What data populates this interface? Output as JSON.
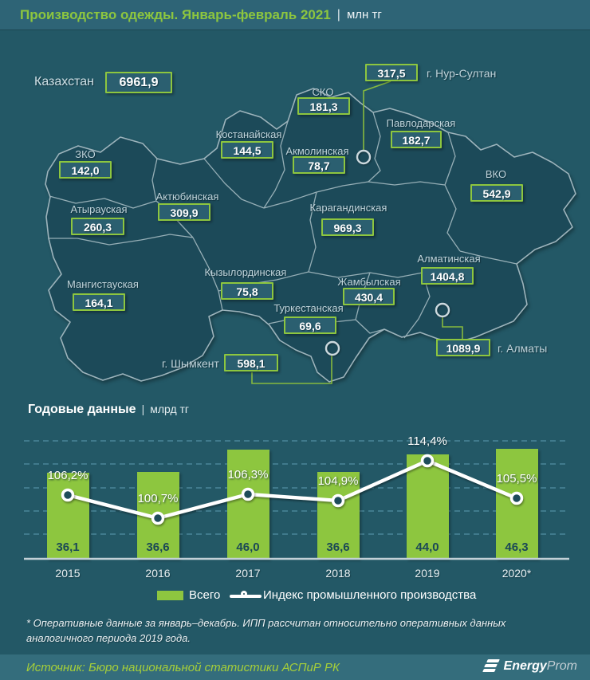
{
  "colors": {
    "accent_green": "#8dc63f",
    "background_teal": "#235866",
    "map_fill": "#1c4a59",
    "badge_fill": "#2b5f70",
    "index_line": "#ffffff",
    "source_text_green": "#a6cf39"
  },
  "header": {
    "title": "Производство одежды. Январь-февраль 2021",
    "divider": "|",
    "unit": "млн тг"
  },
  "map": {
    "country": {
      "label": "Казахстан",
      "value": "6961,9"
    },
    "regions": [
      {
        "name": "ЗКО",
        "value": "142,0"
      },
      {
        "name": "Атырауская",
        "value": "260,3"
      },
      {
        "name": "Мангистауская",
        "value": "164,1"
      },
      {
        "name": "Актюбинская",
        "value": "309,9"
      },
      {
        "name": "Костанайская",
        "value": "144,5"
      },
      {
        "name": "СКО",
        "value": "181,3"
      },
      {
        "name": "Акмолинская",
        "value": "78,7"
      },
      {
        "name": "Павлодарская",
        "value": "182,7"
      },
      {
        "name": "Карагандинская",
        "value": "969,3"
      },
      {
        "name": "ВКО",
        "value": "542,9"
      },
      {
        "name": "Кызылординская",
        "value": "75,8"
      },
      {
        "name": "Туркестанская",
        "value": "69,6"
      },
      {
        "name": "Жамбылская",
        "value": "430,4"
      },
      {
        "name": "Алматинская",
        "value": "1404,8"
      }
    ],
    "cities": [
      {
        "name": "г. Нур-Султан",
        "value": "317,5"
      },
      {
        "name": "г. Алматы",
        "value": "1089,9"
      },
      {
        "name": "г. Шымкент",
        "value": "598,1"
      }
    ]
  },
  "section": {
    "title": "Годовые данные",
    "divider": "|",
    "unit": "млрд тг"
  },
  "chart_data": {
    "type": "bar",
    "title": "Годовые данные",
    "unit": "млрд тг",
    "categories": [
      "2015",
      "2016",
      "2017",
      "2018",
      "2019",
      "2020*"
    ],
    "series": [
      {
        "name": "Всего",
        "type": "bar",
        "color": "#8dc63f",
        "values": [
          36.1,
          36.6,
          46.0,
          36.6,
          44.0,
          46.3
        ],
        "labels": [
          "36,1",
          "36,6",
          "46,0",
          "36,6",
          "44,0",
          "46,3"
        ]
      },
      {
        "name": "Индекс промышленного производства",
        "type": "line",
        "color": "#ffffff",
        "values": [
          106.2,
          100.7,
          106.3,
          104.9,
          114.4,
          105.5
        ],
        "labels": [
          "106,2%",
          "100,7%",
          "106,3%",
          "104,9%",
          "114,4%",
          "105,5%"
        ]
      }
    ],
    "xlabel": "",
    "ylabel": "",
    "ylim": [
      0,
      55
    ],
    "grid": true,
    "legend_position": "bottom"
  },
  "legend": {
    "bar_label": "Всего",
    "line_label": "Индекс промышленного производства"
  },
  "footnote": "* Оперативные данные за январь–декабрь. ИПП рассчитан относительно оперативных данных аналогичного периода 2019 года.",
  "source": "Источник: Бюро национальной  статистики АСПиР РК",
  "logo": {
    "bold": "Energy",
    "light": "Prom"
  }
}
